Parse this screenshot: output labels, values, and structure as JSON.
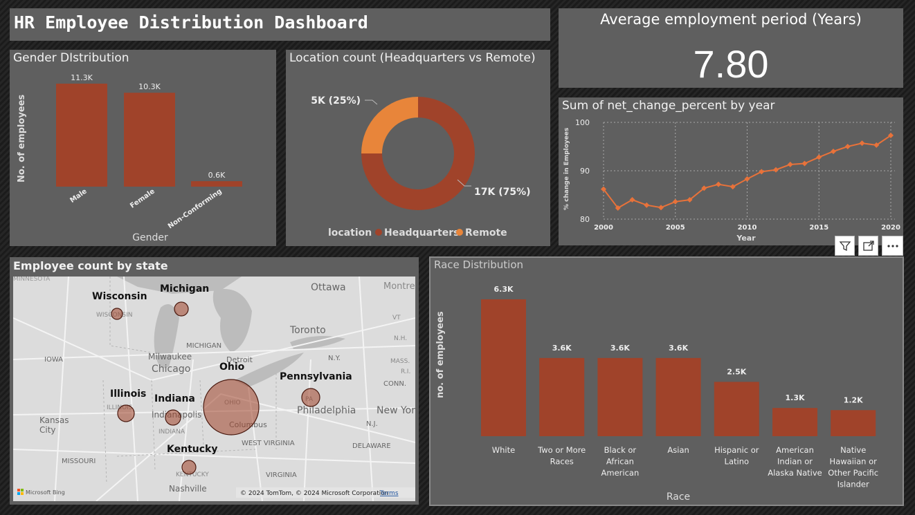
{
  "dashboard": {
    "title": "HR Employee Distribution Dashboard"
  },
  "colors": {
    "bar": "#a0432a",
    "remote": "#e8853a",
    "panel": "#5f5f5f",
    "line": "#e8723a"
  },
  "kpi": {
    "label": "Average employment period (Years)",
    "value": "7.80"
  },
  "gender": {
    "title": "Gender DIstribution",
    "ylabel": "No. of employees",
    "xlabel": "Gender",
    "chart_data": {
      "type": "bar",
      "categories": [
        "Male",
        "Female",
        "Non-Conforming"
      ],
      "values": [
        11.3,
        10.3,
        0.6
      ],
      "labels": [
        "11.3K",
        "10.3K",
        "0.6K"
      ],
      "xlabel": "Gender",
      "ylabel": "No. of employees",
      "ylim": [
        0,
        11.3
      ]
    }
  },
  "location": {
    "title": "Location count (Headquarters vs Remote)",
    "legend_title": "location",
    "chart_data": {
      "type": "pie",
      "categories": [
        "Headquarters",
        "Remote"
      ],
      "values": [
        17,
        5
      ],
      "labels": [
        "17K (75%)",
        "5K (25%)"
      ]
    }
  },
  "trend": {
    "title": "Sum of net_change_percent by year",
    "xlabel": "Year",
    "ylabel": "% change in Employees",
    "chart_data": {
      "type": "line",
      "x": [
        2000,
        2001,
        2002,
        2003,
        2004,
        2005,
        2006,
        2007,
        2008,
        2009,
        2010,
        2011,
        2012,
        2013,
        2014,
        2015,
        2016,
        2017,
        2018,
        2019,
        2020
      ],
      "values": [
        86.2,
        82.3,
        84.0,
        82.9,
        82.4,
        83.6,
        84.0,
        86.4,
        87.2,
        86.7,
        88.3,
        89.8,
        90.2,
        91.3,
        91.5,
        92.8,
        94.0,
        95.0,
        95.7,
        95.3,
        97.3
      ],
      "xticks": [
        "2000",
        "2005",
        "2010",
        "2015",
        "2020"
      ],
      "yticks": [
        "80",
        "90",
        "100"
      ],
      "xlim": [
        2000,
        2020
      ],
      "ylim": [
        80,
        100
      ],
      "xlabel": "Year",
      "ylabel": "% change in Employees"
    }
  },
  "map": {
    "title": "Employee count by state",
    "bubbles": [
      "Wisconsin",
      "Michigan",
      "Ohio",
      "Pennsylvania",
      "Illinois",
      "Indiana",
      "Kentucky"
    ],
    "places": [
      "MINNESOTA",
      "Ottawa",
      "Montre",
      "WISCONSIN",
      "MICHIGAN",
      "Toronto",
      "IOWA",
      "Milwaukee",
      "Chicago",
      "Detroit",
      "N.Y.",
      "CONN.",
      "ILLINOIS",
      "OHIO",
      "PA",
      "Philadelphia",
      "New Yor",
      "Kansas",
      "City",
      "Indianapolis",
      "INDIANA",
      "Columbus",
      "WEST VIRGINIA",
      "N.J.",
      "DELAWARE",
      "MISSOURI",
      "KENTUCKY",
      "VIRGINIA",
      "Nashville",
      "VT",
      "N.H.",
      "MASS.",
      "R.I."
    ],
    "copyright": "© 2024 TomTom, © 2024 Microsoft Corporation",
    "terms": "Terms",
    "logo": "Microsoft Bing"
  },
  "race": {
    "title": "Race Distribution",
    "ylabel": "no. of employees",
    "xlabel": "Race",
    "chart_data": {
      "type": "bar",
      "categories": [
        [
          "White"
        ],
        [
          "Two or More",
          "Races"
        ],
        [
          "Black or",
          "African",
          "American"
        ],
        [
          "Asian"
        ],
        [
          "Hispanic or",
          "Latino"
        ],
        [
          "American",
          "Indian or",
          "Alaska Native"
        ],
        [
          "Native",
          "Hawaiian or",
          "Other Pacific",
          "Islander"
        ]
      ],
      "values": [
        6.3,
        3.6,
        3.6,
        3.6,
        2.5,
        1.3,
        1.2
      ],
      "labels": [
        "6.3K",
        "3.6K",
        "3.6K",
        "3.6K",
        "2.5K",
        "1.3K",
        "1.2K"
      ],
      "xlabel": "Race",
      "ylabel": "no. of employees",
      "ylim": [
        0,
        6.3
      ]
    }
  },
  "toolbar": {
    "filter_icon": "filter-icon",
    "focus_icon": "focus-mode-icon",
    "more_icon": "more-options-icon"
  }
}
